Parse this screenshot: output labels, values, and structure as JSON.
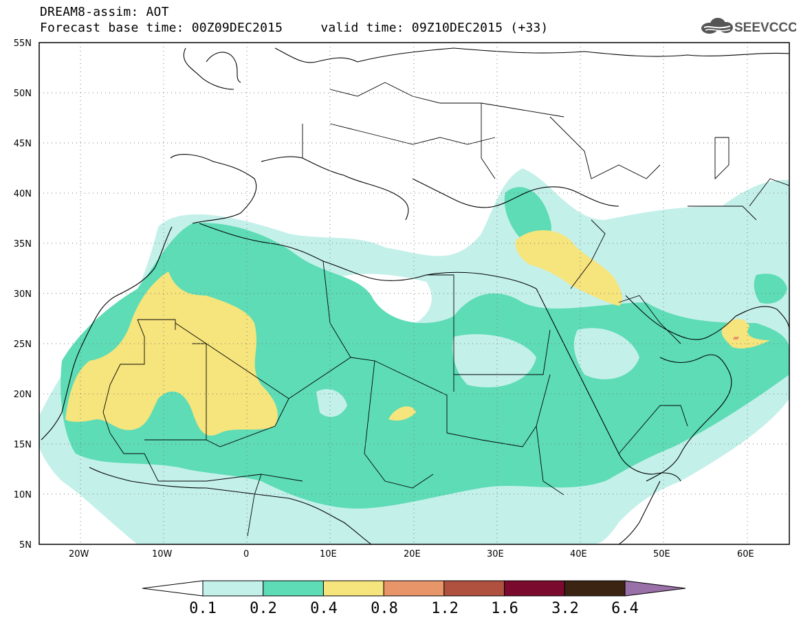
{
  "header": {
    "line1": "DREAM8-assim: AOT",
    "line2": "Forecast base time: 00Z09DEC2015     valid time: 09Z10DEC2015 (+33)",
    "logo_text": "SEEVCCC"
  },
  "map": {
    "lon_range": [
      -25,
      65
    ],
    "lat_range": [
      5,
      55
    ],
    "lat_ticks": [
      "5N",
      "10N",
      "15N",
      "20N",
      "25N",
      "30N",
      "35N",
      "40N",
      "45N",
      "50N",
      "55N"
    ],
    "lon_ticks": [
      "20W",
      "10W",
      "0",
      "10E",
      "20E",
      "30E",
      "40E",
      "50E",
      "60E"
    ],
    "grid": "dotted"
  },
  "colorbar": {
    "labels": [
      "0.1",
      "0.2",
      "0.4",
      "0.8",
      "1.2",
      "1.6",
      "3.2",
      "6.4"
    ],
    "colors": [
      "#ffffff",
      "#c4f0ea",
      "#5ddcb6",
      "#f6e47c",
      "#e8956a",
      "#b0503e",
      "#7a0a2e",
      "#3c2412",
      "#9a70a8"
    ]
  }
}
